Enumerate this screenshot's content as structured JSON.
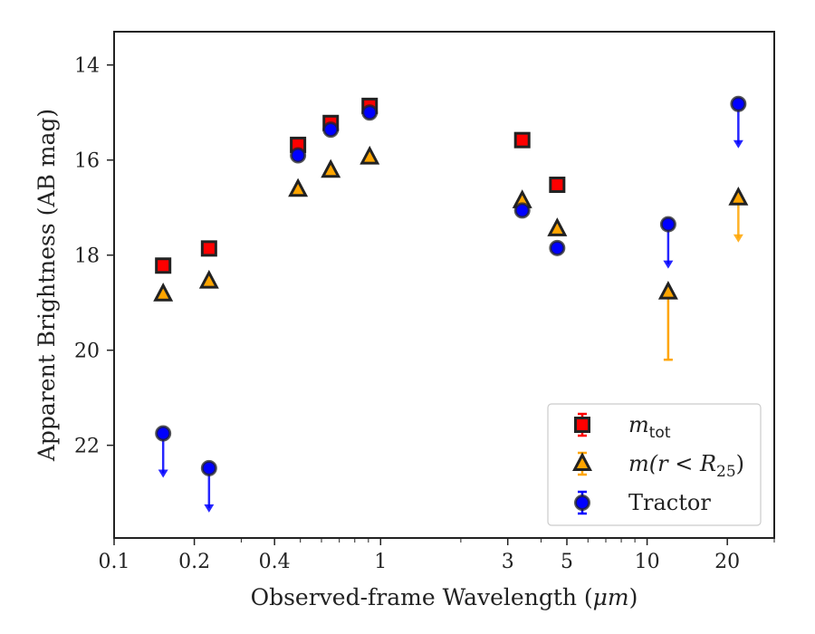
{
  "chart_data": {
    "type": "scatter",
    "xlabel_prefix": "Observed-frame Wavelength (",
    "xlabel_unit": "μm",
    "xlabel_suffix": ")",
    "ylabel": "Apparent Brightness (AB mag)",
    "x_scale": "log",
    "xlim": [
      0.1,
      30
    ],
    "ylim": [
      23.95,
      13.3
    ],
    "y_inverted": true,
    "x_ticks": [
      {
        "value": 0.1,
        "label": "0.1"
      },
      {
        "value": 0.2,
        "label": "0.2"
      },
      {
        "value": 0.4,
        "label": "0.4"
      },
      {
        "value": 1,
        "label": "1"
      },
      {
        "value": 3,
        "label": "3"
      },
      {
        "value": 5,
        "label": "5"
      },
      {
        "value": 10,
        "label": "10"
      },
      {
        "value": 20,
        "label": "20"
      }
    ],
    "x_minor_ticks": [
      0.3,
      0.5,
      0.6,
      0.7,
      0.8,
      0.9,
      2,
      4,
      6,
      7,
      8,
      9,
      30
    ],
    "y_ticks": [
      {
        "value": 14,
        "label": "14"
      },
      {
        "value": 16,
        "label": "16"
      },
      {
        "value": 18,
        "label": "18"
      },
      {
        "value": 20,
        "label": "20"
      },
      {
        "value": 22,
        "label": "22"
      }
    ],
    "legend_position": "lower-right",
    "series": [
      {
        "key": "mtot",
        "legend_main": "m",
        "legend_sub": "tot",
        "marker": "square",
        "fill": "#ff0000",
        "edge": "#222222",
        "errcolor": "#ff0000",
        "points": [
          {
            "x": 0.1528,
            "y": 18.22
          },
          {
            "x": 0.2271,
            "y": 17.86
          },
          {
            "x": 0.49,
            "y": 15.68
          },
          {
            "x": 0.65,
            "y": 15.22
          },
          {
            "x": 0.91,
            "y": 14.86
          },
          {
            "x": 3.4,
            "y": 15.58
          },
          {
            "x": 4.6,
            "y": 16.52
          }
        ]
      },
      {
        "key": "mr25",
        "legend_main": "m(r < R",
        "legend_sub": "25",
        "legend_close": ")",
        "marker": "triangle",
        "fill": "#ffa500",
        "edge": "#222222",
        "errcolor": "#ffa500",
        "points": [
          {
            "x": 0.1528,
            "y": 18.82
          },
          {
            "x": 0.2271,
            "y": 18.55
          },
          {
            "x": 0.49,
            "y": 16.62
          },
          {
            "x": 0.65,
            "y": 16.22
          },
          {
            "x": 0.91,
            "y": 15.94
          },
          {
            "x": 3.4,
            "y": 16.86
          },
          {
            "x": 4.6,
            "y": 17.45
          },
          {
            "x": 12,
            "y": 18.78,
            "err_low": 1.42
          },
          {
            "x": 22,
            "y": 16.8,
            "upper_limit": true
          }
        ]
      },
      {
        "key": "tractor",
        "legend_main": "Tractor",
        "marker": "circle",
        "fill": "#0000ff",
        "edge": "#222222",
        "errcolor": "#0000ff",
        "points": [
          {
            "x": 0.1528,
            "y": 21.75,
            "upper_limit": true
          },
          {
            "x": 0.2271,
            "y": 22.48,
            "upper_limit": true
          },
          {
            "x": 0.49,
            "y": 15.9
          },
          {
            "x": 0.65,
            "y": 15.36
          },
          {
            "x": 0.91,
            "y": 15.0
          },
          {
            "x": 3.4,
            "y": 17.06
          },
          {
            "x": 4.6,
            "y": 17.85
          },
          {
            "x": 12,
            "y": 17.35,
            "upper_limit": true
          },
          {
            "x": 22,
            "y": 14.82,
            "upper_limit": true
          }
        ]
      }
    ]
  }
}
